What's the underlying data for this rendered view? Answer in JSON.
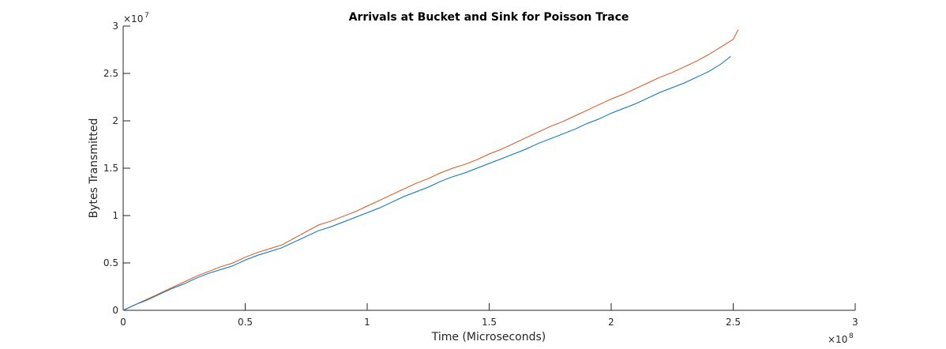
{
  "chart_data": {
    "type": "line",
    "title": "Arrivals at Bucket and Sink for Poisson Trace",
    "xlabel": "Time (Microseconds)",
    "ylabel": "Bytes Transmitted",
    "x_multiplier": {
      "base": "×10",
      "exponent": "8"
    },
    "y_multiplier": {
      "base": "×10",
      "exponent": "7"
    },
    "xlim": [
      0,
      3
    ],
    "ylim": [
      0,
      3
    ],
    "x_ticks": [
      "0",
      "0.5",
      "1",
      "1.5",
      "2",
      "2.5",
      "3"
    ],
    "y_ticks": [
      "0",
      "0.5",
      "1",
      "1.5",
      "2",
      "2.5",
      "3"
    ],
    "grid": false,
    "series": [
      {
        "color": "#D95319",
        "x": [
          0,
          0.05,
          0.1,
          0.15,
          0.2,
          0.25,
          0.3,
          0.35,
          0.4,
          0.45,
          0.5,
          0.55,
          0.6,
          0.65,
          0.7,
          0.75,
          0.8,
          0.85,
          0.9,
          0.95,
          1.0,
          1.05,
          1.1,
          1.15,
          1.2,
          1.25,
          1.3,
          1.35,
          1.4,
          1.45,
          1.5,
          1.55,
          1.6,
          1.65,
          1.7,
          1.75,
          1.8,
          1.85,
          1.9,
          1.95,
          2.0,
          2.05,
          2.1,
          2.15,
          2.2,
          2.25,
          2.3,
          2.35,
          2.4,
          2.45,
          2.5,
          2.52
        ],
        "y": [
          0,
          0.06,
          0.12,
          0.18,
          0.24,
          0.3,
          0.36,
          0.41,
          0.46,
          0.5,
          0.56,
          0.61,
          0.65,
          0.69,
          0.76,
          0.83,
          0.9,
          0.94,
          0.99,
          1.04,
          1.1,
          1.16,
          1.22,
          1.28,
          1.34,
          1.39,
          1.45,
          1.5,
          1.54,
          1.59,
          1.65,
          1.7,
          1.76,
          1.82,
          1.88,
          1.94,
          1.99,
          2.05,
          2.11,
          2.17,
          2.23,
          2.28,
          2.34,
          2.4,
          2.46,
          2.51,
          2.57,
          2.63,
          2.7,
          2.78,
          2.86,
          2.96
        ]
      },
      {
        "color": "#0072BD",
        "x": [
          0,
          0.05,
          0.1,
          0.15,
          0.2,
          0.25,
          0.3,
          0.35,
          0.4,
          0.45,
          0.5,
          0.55,
          0.6,
          0.65,
          0.7,
          0.75,
          0.8,
          0.85,
          0.9,
          0.95,
          1.0,
          1.05,
          1.1,
          1.15,
          1.2,
          1.25,
          1.3,
          1.35,
          1.4,
          1.45,
          1.5,
          1.55,
          1.6,
          1.65,
          1.7,
          1.75,
          1.8,
          1.85,
          1.9,
          1.95,
          2.0,
          2.05,
          2.1,
          2.15,
          2.2,
          2.25,
          2.3,
          2.35,
          2.4,
          2.45,
          2.49
        ],
        "y": [
          0,
          0.06,
          0.11,
          0.17,
          0.23,
          0.28,
          0.34,
          0.39,
          0.43,
          0.47,
          0.53,
          0.58,
          0.62,
          0.66,
          0.72,
          0.78,
          0.84,
          0.88,
          0.93,
          0.98,
          1.03,
          1.08,
          1.14,
          1.2,
          1.25,
          1.3,
          1.36,
          1.41,
          1.45,
          1.5,
          1.55,
          1.6,
          1.65,
          1.7,
          1.76,
          1.81,
          1.86,
          1.91,
          1.97,
          2.02,
          2.08,
          2.13,
          2.18,
          2.24,
          2.3,
          2.35,
          2.4,
          2.46,
          2.52,
          2.6,
          2.68
        ]
      }
    ]
  }
}
